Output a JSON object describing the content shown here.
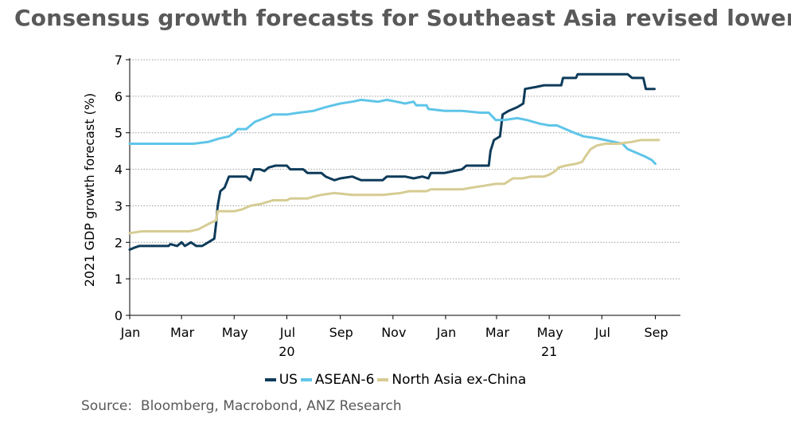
{
  "title": "Consensus growth forecasts for Southeast Asia revised lower",
  "source": "Source:  Bloomberg, Macrobond, ANZ Research",
  "colors": {
    "US": "#0e3b5a",
    "ASEAN-6": "#5fc5e8",
    "North Asia ex-China": "#d6cc93"
  },
  "chart_data": {
    "type": "line",
    "title": "Consensus growth forecasts for Southeast Asia revised lower",
    "xlabel": "",
    "ylabel": "2021 GDP growth forecast (%)",
    "ylim": [
      0,
      7
    ],
    "yticks": [
      "0",
      "1",
      "2",
      "3",
      "4",
      "5",
      "6",
      "7"
    ],
    "xlim": [
      "2020-01-01",
      "2021-09-30"
    ],
    "xticks": [
      {
        "date": "2020-01-01",
        "label": "Jan"
      },
      {
        "date": "2020-03-01",
        "label": "Mar"
      },
      {
        "date": "2020-05-01",
        "label": "May"
      },
      {
        "date": "2020-07-01",
        "label": "Jul"
      },
      {
        "date": "2020-09-01",
        "label": "Sep"
      },
      {
        "date": "2020-11-01",
        "label": "Nov"
      },
      {
        "date": "2021-01-01",
        "label": "Jan"
      },
      {
        "date": "2021-03-01",
        "label": "Mar"
      },
      {
        "date": "2021-05-01",
        "label": "May"
      },
      {
        "date": "2021-07-01",
        "label": "Jul"
      },
      {
        "date": "2021-09-01",
        "label": "Sep"
      }
    ],
    "year_labels": [
      {
        "date": "2020-07-01",
        "label": "20"
      },
      {
        "date": "2021-05-01",
        "label": "21"
      }
    ],
    "grid": "horizontal dotted",
    "legend_position": "bottom",
    "series": [
      {
        "name": "US",
        "points": [
          [
            "2020-01-01",
            1.8
          ],
          [
            "2020-01-06",
            1.85
          ],
          [
            "2020-01-12",
            1.9
          ],
          [
            "2020-02-01",
            1.9
          ],
          [
            "2020-02-15",
            1.9
          ],
          [
            "2020-02-17",
            1.95
          ],
          [
            "2020-02-25",
            1.9
          ],
          [
            "2020-03-01",
            2.0
          ],
          [
            "2020-03-05",
            1.9
          ],
          [
            "2020-03-12",
            2.0
          ],
          [
            "2020-03-18",
            1.9
          ],
          [
            "2020-03-25",
            1.9
          ],
          [
            "2020-04-01",
            2.0
          ],
          [
            "2020-04-08",
            2.1
          ],
          [
            "2020-04-10",
            2.5
          ],
          [
            "2020-04-12",
            3.0
          ],
          [
            "2020-04-15",
            3.4
          ],
          [
            "2020-04-20",
            3.5
          ],
          [
            "2020-04-25",
            3.8
          ],
          [
            "2020-05-15",
            3.8
          ],
          [
            "2020-05-20",
            3.7
          ],
          [
            "2020-05-24",
            4.0
          ],
          [
            "2020-05-31",
            4.0
          ],
          [
            "2020-06-05",
            3.95
          ],
          [
            "2020-06-10",
            4.05
          ],
          [
            "2020-06-18",
            4.1
          ],
          [
            "2020-07-01",
            4.1
          ],
          [
            "2020-07-05",
            4.0
          ],
          [
            "2020-07-20",
            4.0
          ],
          [
            "2020-07-25",
            3.9
          ],
          [
            "2020-08-10",
            3.9
          ],
          [
            "2020-08-15",
            3.8
          ],
          [
            "2020-08-25",
            3.7
          ],
          [
            "2020-09-01",
            3.75
          ],
          [
            "2020-09-15",
            3.8
          ],
          [
            "2020-09-25",
            3.7
          ],
          [
            "2020-10-20",
            3.7
          ],
          [
            "2020-10-25",
            3.8
          ],
          [
            "2020-11-15",
            3.8
          ],
          [
            "2020-11-25",
            3.75
          ],
          [
            "2020-12-05",
            3.8
          ],
          [
            "2020-12-12",
            3.75
          ],
          [
            "2020-12-15",
            3.9
          ],
          [
            "2020-12-31",
            3.9
          ],
          [
            "2021-01-10",
            3.95
          ],
          [
            "2021-01-20",
            4.0
          ],
          [
            "2021-01-25",
            4.1
          ],
          [
            "2021-02-20",
            4.1
          ],
          [
            "2021-02-22",
            4.5
          ],
          [
            "2021-02-26",
            4.8
          ],
          [
            "2021-03-05",
            4.9
          ],
          [
            "2021-03-08",
            5.5
          ],
          [
            "2021-03-15",
            5.6
          ],
          [
            "2021-03-25",
            5.7
          ],
          [
            "2021-04-01",
            5.8
          ],
          [
            "2021-04-03",
            6.2
          ],
          [
            "2021-04-15",
            6.25
          ],
          [
            "2021-04-25",
            6.3
          ],
          [
            "2021-05-15",
            6.3
          ],
          [
            "2021-05-17",
            6.5
          ],
          [
            "2021-06-01",
            6.5
          ],
          [
            "2021-06-03",
            6.6
          ],
          [
            "2021-07-15",
            6.6
          ],
          [
            "2021-07-31",
            6.6
          ],
          [
            "2021-08-05",
            6.5
          ],
          [
            "2021-08-18",
            6.5
          ],
          [
            "2021-08-21",
            6.2
          ],
          [
            "2021-08-31",
            6.2
          ]
        ]
      },
      {
        "name": "ASEAN-6",
        "points": [
          [
            "2020-01-01",
            4.7
          ],
          [
            "2020-02-10",
            4.7
          ],
          [
            "2020-02-15",
            4.7
          ],
          [
            "2020-03-15",
            4.7
          ],
          [
            "2020-04-01",
            4.75
          ],
          [
            "2020-04-15",
            4.85
          ],
          [
            "2020-04-25",
            4.9
          ],
          [
            "2020-05-01",
            5.0
          ],
          [
            "2020-05-05",
            5.1
          ],
          [
            "2020-05-15",
            5.1
          ],
          [
            "2020-05-25",
            5.3
          ],
          [
            "2020-06-05",
            5.4
          ],
          [
            "2020-06-15",
            5.5
          ],
          [
            "2020-07-01",
            5.5
          ],
          [
            "2020-07-15",
            5.55
          ],
          [
            "2020-08-01",
            5.6
          ],
          [
            "2020-08-15",
            5.7
          ],
          [
            "2020-09-01",
            5.8
          ],
          [
            "2020-09-15",
            5.85
          ],
          [
            "2020-09-25",
            5.9
          ],
          [
            "2020-10-15",
            5.85
          ],
          [
            "2020-10-25",
            5.9
          ],
          [
            "2020-11-05",
            5.85
          ],
          [
            "2020-11-15",
            5.8
          ],
          [
            "2020-11-25",
            5.85
          ],
          [
            "2020-11-28",
            5.75
          ],
          [
            "2020-12-10",
            5.75
          ],
          [
            "2020-12-12",
            5.65
          ],
          [
            "2020-12-31",
            5.6
          ],
          [
            "2021-01-20",
            5.6
          ],
          [
            "2021-02-10",
            5.55
          ],
          [
            "2021-02-20",
            5.55
          ],
          [
            "2021-02-28",
            5.35
          ],
          [
            "2021-03-10",
            5.35
          ],
          [
            "2021-03-25",
            5.4
          ],
          [
            "2021-04-05",
            5.35
          ],
          [
            "2021-04-20",
            5.25
          ],
          [
            "2021-05-01",
            5.2
          ],
          [
            "2021-05-10",
            5.2
          ],
          [
            "2021-05-20",
            5.1
          ],
          [
            "2021-05-30",
            5.0
          ],
          [
            "2021-06-10",
            4.9
          ],
          [
            "2021-06-25",
            4.85
          ],
          [
            "2021-07-05",
            4.8
          ],
          [
            "2021-07-15",
            4.75
          ],
          [
            "2021-07-25",
            4.7
          ],
          [
            "2021-07-31",
            4.55
          ],
          [
            "2021-08-10",
            4.45
          ],
          [
            "2021-08-20",
            4.35
          ],
          [
            "2021-08-28",
            4.25
          ],
          [
            "2021-09-01",
            4.15
          ]
        ]
      },
      {
        "name": "North Asia ex-China",
        "points": [
          [
            "2020-01-01",
            2.25
          ],
          [
            "2020-01-15",
            2.3
          ],
          [
            "2020-02-15",
            2.3
          ],
          [
            "2020-03-10",
            2.3
          ],
          [
            "2020-03-20",
            2.35
          ],
          [
            "2020-04-01",
            2.5
          ],
          [
            "2020-04-10",
            2.6
          ],
          [
            "2020-04-12",
            2.85
          ],
          [
            "2020-05-01",
            2.85
          ],
          [
            "2020-05-10",
            2.9
          ],
          [
            "2020-05-20",
            3.0
          ],
          [
            "2020-06-01",
            3.05
          ],
          [
            "2020-06-15",
            3.15
          ],
          [
            "2020-07-01",
            3.15
          ],
          [
            "2020-07-05",
            3.2
          ],
          [
            "2020-07-25",
            3.2
          ],
          [
            "2020-08-01",
            3.25
          ],
          [
            "2020-08-10",
            3.3
          ],
          [
            "2020-08-25",
            3.35
          ],
          [
            "2020-09-15",
            3.3
          ],
          [
            "2020-10-01",
            3.3
          ],
          [
            "2020-10-20",
            3.3
          ],
          [
            "2020-11-10",
            3.35
          ],
          [
            "2020-11-20",
            3.4
          ],
          [
            "2020-12-10",
            3.4
          ],
          [
            "2020-12-15",
            3.45
          ],
          [
            "2021-01-20",
            3.45
          ],
          [
            "2021-02-01",
            3.5
          ],
          [
            "2021-02-15",
            3.55
          ],
          [
            "2021-02-28",
            3.6
          ],
          [
            "2021-03-10",
            3.6
          ],
          [
            "2021-03-20",
            3.75
          ],
          [
            "2021-03-31",
            3.75
          ],
          [
            "2021-04-10",
            3.8
          ],
          [
            "2021-04-25",
            3.8
          ],
          [
            "2021-05-01",
            3.85
          ],
          [
            "2021-05-08",
            3.95
          ],
          [
            "2021-05-12",
            4.05
          ],
          [
            "2021-05-20",
            4.1
          ],
          [
            "2021-06-01",
            4.15
          ],
          [
            "2021-06-08",
            4.2
          ],
          [
            "2021-06-12",
            4.35
          ],
          [
            "2021-06-18",
            4.55
          ],
          [
            "2021-06-25",
            4.65
          ],
          [
            "2021-07-05",
            4.7
          ],
          [
            "2021-07-20",
            4.7
          ],
          [
            "2021-08-05",
            4.75
          ],
          [
            "2021-08-15",
            4.8
          ],
          [
            "2021-08-31",
            4.8
          ],
          [
            "2021-09-05",
            4.8
          ]
        ]
      }
    ]
  }
}
